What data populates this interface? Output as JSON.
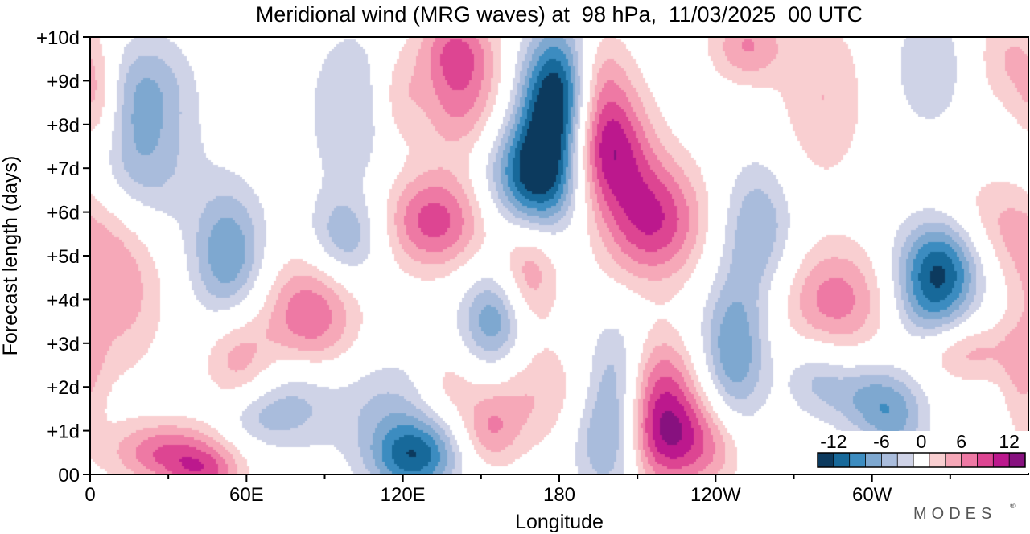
{
  "chart_data": {
    "type": "heatmap",
    "title": "Meridional wind (MRG waves) at  98 hPa,  11/03/2025  00 UTC",
    "xlabel": "Longitude",
    "ylabel": "Forecast length (days)",
    "x_ticks": [
      {
        "lon": 0,
        "label": "0"
      },
      {
        "lon": 60,
        "label": "60E"
      },
      {
        "lon": 120,
        "label": "120E"
      },
      {
        "lon": 180,
        "label": "180"
      },
      {
        "lon": 240,
        "label": "120W"
      },
      {
        "lon": 300,
        "label": "60W"
      }
    ],
    "x_minor_ticks": [
      30,
      90,
      150,
      210,
      270,
      330
    ],
    "xlim": [
      0,
      360
    ],
    "y_ticks": [
      {
        "day": 0,
        "label": "00"
      },
      {
        "day": 1,
        "label": "+1d"
      },
      {
        "day": 2,
        "label": "+2d"
      },
      {
        "day": 3,
        "label": "+3d"
      },
      {
        "day": 4,
        "label": "+4d"
      },
      {
        "day": 5,
        "label": "+5d"
      },
      {
        "day": 6,
        "label": "+6d"
      },
      {
        "day": 7,
        "label": "+7d"
      },
      {
        "day": 8,
        "label": "+8d"
      },
      {
        "day": 9,
        "label": "+9d"
      },
      {
        "day": 10,
        "label": "+10d"
      }
    ],
    "ylim": [
      0,
      10
    ],
    "colorbar": {
      "labels": [
        "-12",
        "-6",
        "0",
        "6",
        "12"
      ],
      "levels": [
        -14,
        -12,
        -10,
        -8,
        -6,
        -4,
        -2,
        2,
        4,
        6,
        8,
        10,
        12,
        14
      ],
      "colors": [
        "#0c3a5e",
        "#17699a",
        "#3c8cc0",
        "#7ea8d0",
        "#a9bcdc",
        "#cfd3e7",
        "#ffffff",
        "#f9cfd1",
        "#f6a8b8",
        "#ee79a4",
        "#dd4592",
        "#bc188d",
        "#87117f"
      ]
    },
    "features": [
      {
        "lon": 172,
        "day": 6.8,
        "amp": -13,
        "sx": 13,
        "sy": 0.9,
        "tilt": 22
      },
      {
        "lon": 181,
        "day": 9.0,
        "amp": -11,
        "sx": 10,
        "sy": 1.0,
        "tilt": 10
      },
      {
        "lon": 178,
        "day": 8.0,
        "amp": -8,
        "sx": 10,
        "sy": 1.0,
        "tilt": 15
      },
      {
        "lon": 196,
        "day": 7.5,
        "amp": 13,
        "sx": 12,
        "sy": 1.0,
        "tilt": 20
      },
      {
        "lon": 216,
        "day": 5.8,
        "amp": 10,
        "sx": 14,
        "sy": 1.0,
        "tilt": 18
      },
      {
        "lon": 193,
        "day": 9.2,
        "amp": 6,
        "sx": 9,
        "sy": 0.8,
        "tilt": 0
      },
      {
        "lon": 132,
        "day": 5.8,
        "amp": 9,
        "sx": 14,
        "sy": 0.8,
        "tilt": 0
      },
      {
        "lon": 142,
        "day": 8.7,
        "amp": 7,
        "sx": 12,
        "sy": 1.0,
        "tilt": 10
      },
      {
        "lon": 140,
        "day": 9.8,
        "amp": 5,
        "sx": 10,
        "sy": 0.6,
        "tilt": 0
      },
      {
        "lon": 220,
        "day": 1.0,
        "amp": 13,
        "sx": 12,
        "sy": 0.9,
        "tilt": 0
      },
      {
        "lon": 218,
        "day": 2.5,
        "amp": 4,
        "sx": 10,
        "sy": 0.7,
        "tilt": 0
      },
      {
        "lon": 124,
        "day": 0.4,
        "amp": -11,
        "sx": 12,
        "sy": 0.6,
        "tilt": 0
      },
      {
        "lon": 113,
        "day": 1.6,
        "amp": -4,
        "sx": 18,
        "sy": 0.8,
        "tilt": 25
      },
      {
        "lon": 84,
        "day": 3.6,
        "amp": 8,
        "sx": 13,
        "sy": 1.0,
        "tilt": -30
      },
      {
        "lon": 327,
        "day": 4.8,
        "amp": -11,
        "sx": 12,
        "sy": 0.8,
        "tilt": 0
      },
      {
        "lon": 322,
        "day": 3.8,
        "amp": -5,
        "sx": 10,
        "sy": 0.8,
        "tilt": 0
      },
      {
        "lon": 286,
        "day": 4.0,
        "amp": 7,
        "sx": 15,
        "sy": 0.9,
        "tilt": 0
      },
      {
        "lon": 335,
        "day": 2.8,
        "amp": 5,
        "sx": 14,
        "sy": 0.5,
        "tilt": 0
      },
      {
        "lon": 296,
        "day": 1.8,
        "amp": -5,
        "sx": 10,
        "sy": 0.6,
        "tilt": 0
      },
      {
        "lon": 309,
        "day": 1.3,
        "amp": -6,
        "sx": 9,
        "sy": 0.7,
        "tilt": 0
      },
      {
        "lon": 247,
        "day": 2.8,
        "amp": -8,
        "sx": 9,
        "sy": 1.2,
        "tilt": 30
      },
      {
        "lon": 256,
        "day": 5.6,
        "amp": -6,
        "sx": 10,
        "sy": 1.1,
        "tilt": 0
      },
      {
        "lon": 200,
        "day": 0.8,
        "amp": -8,
        "sx": 10,
        "sy": 0.9,
        "tilt": 0
      },
      {
        "lon": 202,
        "day": 2.4,
        "amp": -5,
        "sx": 8,
        "sy": 0.9,
        "tilt": 0
      },
      {
        "lon": 155,
        "day": 3.5,
        "amp": -8,
        "sx": 9,
        "sy": 0.8,
        "tilt": 0
      },
      {
        "lon": 168,
        "day": 4.6,
        "amp": 6,
        "sx": 8,
        "sy": 0.9,
        "tilt": 0
      },
      {
        "lon": 170,
        "day": 1.8,
        "amp": 4,
        "sx": 16,
        "sy": 0.9,
        "tilt": 30
      },
      {
        "lon": 153,
        "day": 1.0,
        "amp": 5,
        "sx": 8,
        "sy": 0.6,
        "tilt": 0
      },
      {
        "lon": 53,
        "day": 5.0,
        "amp": -8,
        "sx": 10,
        "sy": 1.1,
        "tilt": -15
      },
      {
        "lon": 98,
        "day": 5.4,
        "amp": -6,
        "sx": 10,
        "sy": 0.7,
        "tilt": 0
      },
      {
        "lon": 20,
        "day": 7.3,
        "amp": -6,
        "sx": 14,
        "sy": 1.2,
        "tilt": -10
      },
      {
        "lon": 22,
        "day": 9.0,
        "amp": -4,
        "sx": 12,
        "sy": 0.8,
        "tilt": 0
      },
      {
        "lon": 12,
        "day": 4.2,
        "amp": 5,
        "sx": 12,
        "sy": 1.3,
        "tilt": -25
      },
      {
        "lon": 3,
        "day": 8.5,
        "amp": 5,
        "sx": 6,
        "sy": 0.9,
        "tilt": 0
      },
      {
        "lon": 30,
        "day": 0.5,
        "amp": 8,
        "sx": 16,
        "sy": 0.5,
        "tilt": 0
      },
      {
        "lon": 44,
        "day": 0.0,
        "amp": 6,
        "sx": 10,
        "sy": 0.4,
        "tilt": 0
      },
      {
        "lon": 56,
        "day": 2.7,
        "amp": 5,
        "sx": 9,
        "sy": 0.8,
        "tilt": 0
      },
      {
        "lon": 64,
        "day": 1.3,
        "amp": -4,
        "sx": 10,
        "sy": 0.5,
        "tilt": 0
      },
      {
        "lon": 80,
        "day": 1.8,
        "amp": -4,
        "sx": 10,
        "sy": 0.8,
        "tilt": 0
      },
      {
        "lon": 100,
        "day": 8.3,
        "amp": -4,
        "sx": 12,
        "sy": 1.4,
        "tilt": 20
      },
      {
        "lon": 118,
        "day": 8.6,
        "amp": 3.5,
        "sx": 6,
        "sy": 0.8,
        "tilt": 0
      },
      {
        "lon": 281,
        "day": 8.6,
        "amp": 4,
        "sx": 12,
        "sy": 1.4,
        "tilt": -15
      },
      {
        "lon": 252,
        "day": 9.8,
        "amp": 6,
        "sx": 10,
        "sy": 0.6,
        "tilt": 0
      },
      {
        "lon": 350,
        "day": 5.6,
        "amp": 5,
        "sx": 16,
        "sy": 0.9,
        "tilt": 20
      },
      {
        "lon": 352,
        "day": 9.5,
        "amp": 4,
        "sx": 9,
        "sy": 0.9,
        "tilt": 0
      },
      {
        "lon": 322,
        "day": 9.3,
        "amp": -4,
        "sx": 10,
        "sy": 1.0,
        "tilt": 0
      },
      {
        "lon": 240,
        "day": 0.6,
        "amp": 4,
        "sx": 9,
        "sy": 0.7,
        "tilt": 0
      },
      {
        "lon": 137,
        "day": 2.0,
        "amp": 3.5,
        "sx": 8,
        "sy": 0.6,
        "tilt": 0
      },
      {
        "lon": 278,
        "day": 2.2,
        "amp": -4,
        "sx": 8,
        "sy": 0.6,
        "tilt": 0
      },
      {
        "lon": 358,
        "day": 2.2,
        "amp": 3.5,
        "sx": 6,
        "sy": 1.0,
        "tilt": 0
      }
    ],
    "grid": false,
    "legend": "bottom-right colorbar"
  },
  "branding": {
    "logo_text": "MODES"
  }
}
